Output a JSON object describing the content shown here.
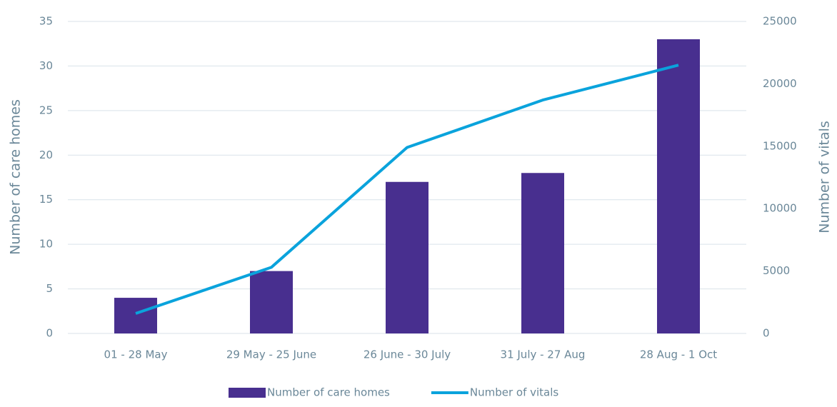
{
  "chart_data": {
    "type": "bar",
    "categories": [
      "01 - 28 May",
      "29 May - 25 June",
      "26 June - 30 July",
      "31 July - 27 Aug",
      "28 Aug - 1 Oct"
    ],
    "series": [
      {
        "name": "Number of care homes",
        "type": "bar",
        "color": "#482f8f",
        "values": [
          4,
          7,
          17,
          18,
          33
        ]
      },
      {
        "name": "Number of vitals",
        "type": "line",
        "axis": "y2",
        "color": "#0aa3dc",
        "values": [
          1600,
          5300,
          14900,
          18700,
          21500
        ]
      }
    ],
    "ylabel": "Number of care homes",
    "y2label": "Number of vitals",
    "ylim": [
      0,
      35
    ],
    "yticks": [
      0,
      5,
      10,
      15,
      20,
      25,
      30,
      35
    ],
    "y2lim": [
      0,
      25000
    ],
    "y2ticks": [
      0,
      5000,
      10000,
      15000,
      20000,
      25000
    ],
    "grid": true,
    "legend": "bottom"
  }
}
